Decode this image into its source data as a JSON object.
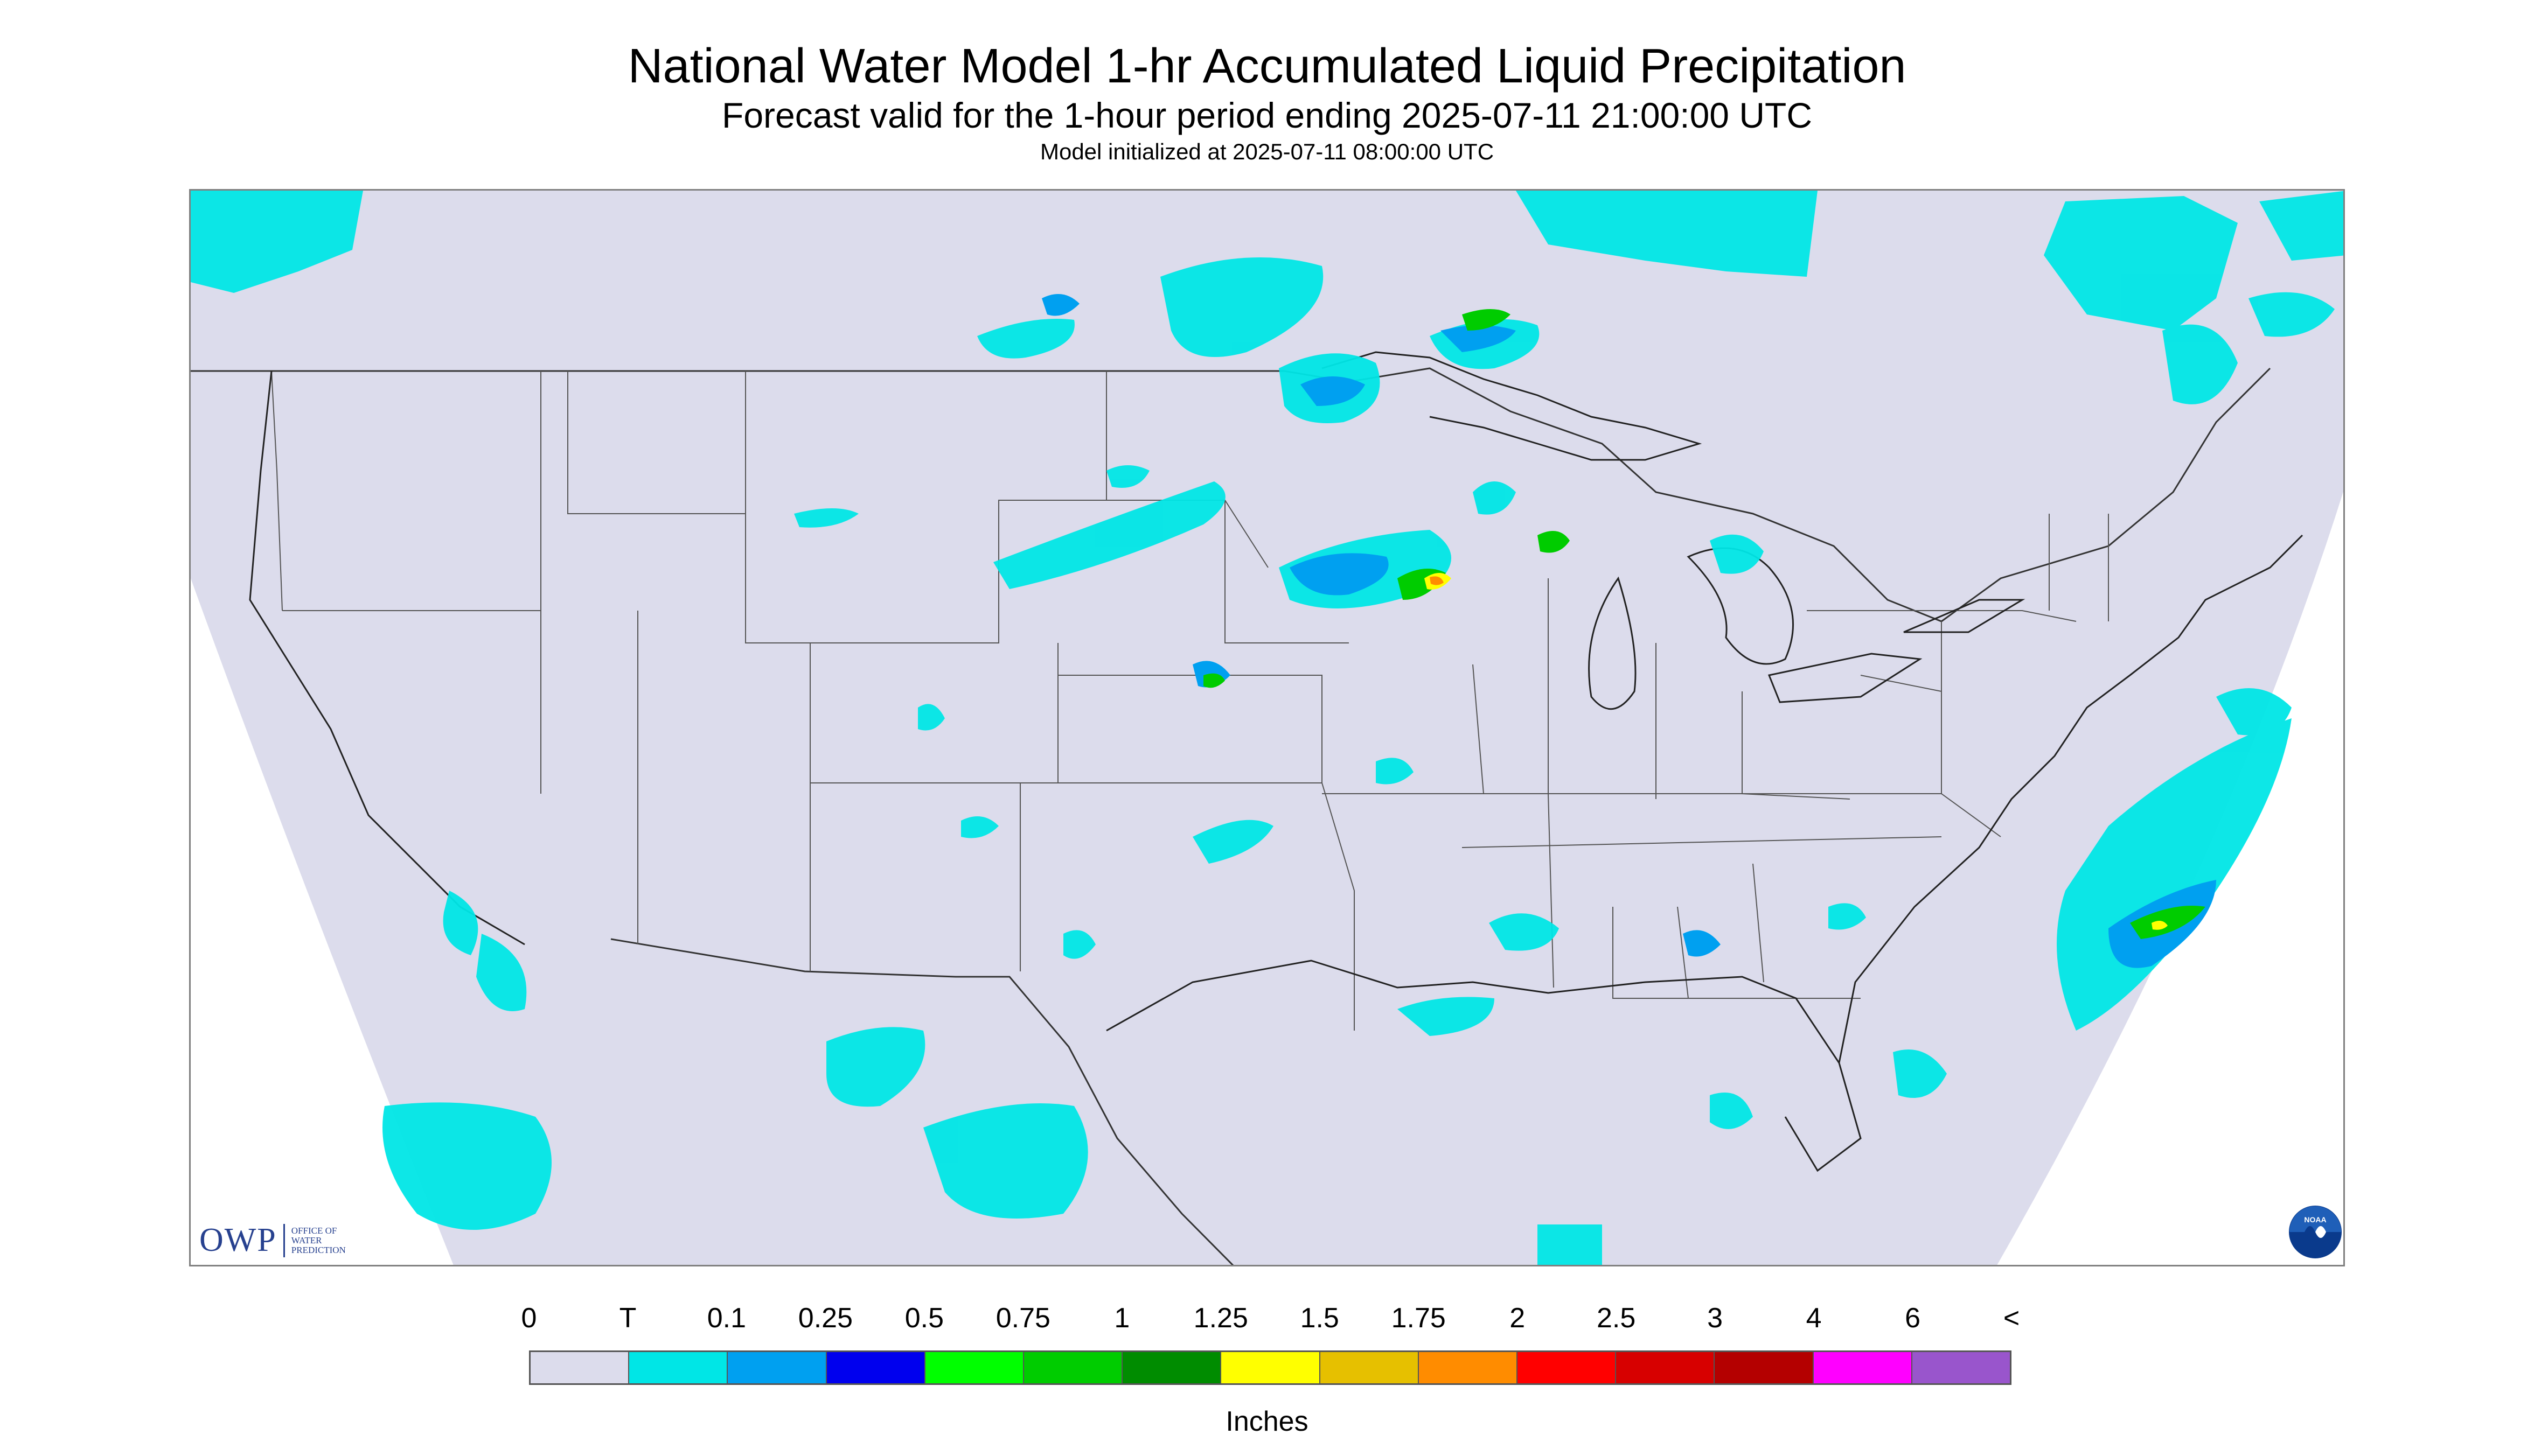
{
  "title": "National Water Model 1-hr Accumulated Liquid Precipitation",
  "subtitle": "Forecast valid for the 1-hour period ending 2025-07-11 21:00:00 UTC",
  "init_text": "Model initialized at 2025-07-11 08:00:00 UTC",
  "legend": {
    "tick_labels": [
      "0",
      "T",
      "0.1",
      "0.25",
      "0.5",
      "0.75",
      "1",
      "1.25",
      "1.5",
      "1.75",
      "2",
      "2.5",
      "3",
      "4",
      "6",
      "<"
    ],
    "colors": [
      "#dcdcec",
      "#00e6e6",
      "#00a0f0",
      "#0000ee",
      "#00ff00",
      "#00cc00",
      "#008c00",
      "#ffff00",
      "#e6c000",
      "#ff8c00",
      "#ff0000",
      "#d70000",
      "#b40000",
      "#ff00ff",
      "#9955cc"
    ],
    "units": "Inches"
  },
  "logos": {
    "owp_mark": "OWP",
    "owp_text": [
      "OFFICE OF",
      "WATER",
      "PREDICTION"
    ],
    "noaa_text": "NOAA"
  },
  "icons": [
    "owp-logo",
    "noaa-logo-icon"
  ]
}
